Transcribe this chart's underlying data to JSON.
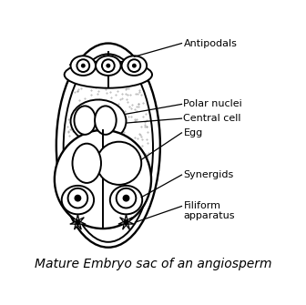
{
  "title": "Mature Embryo sac of an angiosperm",
  "title_fontsize": 10,
  "bg_color": "#ffffff",
  "line_color": "#000000",
  "labels": {
    "antipodals": "Antipodals",
    "polar_nuclei": "Polar nuclei",
    "central_cell": "Central cell",
    "egg": "Egg",
    "synergids": "Synergids",
    "filiform": "Filiform\napparatus"
  }
}
